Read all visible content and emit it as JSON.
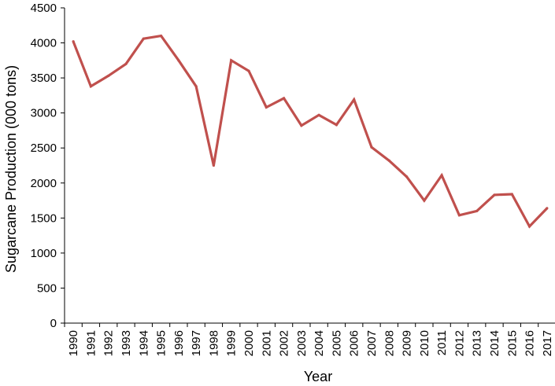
{
  "chart_data": {
    "type": "line",
    "title": "",
    "xlabel": "Year",
    "ylabel": "Sugarcane Production (000 tons)",
    "ylim": [
      0,
      4500
    ],
    "yticks": [
      0,
      500,
      1000,
      1500,
      2000,
      2500,
      3000,
      3500,
      4000,
      4500
    ],
    "x": [
      "1990",
      "1991",
      "1992",
      "1993",
      "1994",
      "1995",
      "1996",
      "1997",
      "1998",
      "1999",
      "2000",
      "2001",
      "2002",
      "2003",
      "2004",
      "2005",
      "2006",
      "2007",
      "2008",
      "2009",
      "2010",
      "2011",
      "2012",
      "2013",
      "2014",
      "2015",
      "2016",
      "2017"
    ],
    "series": [
      {
        "values": [
          4020,
          3380,
          3530,
          3700,
          4060,
          4100,
          3750,
          3380,
          2250,
          3750,
          3600,
          3080,
          3210,
          2820,
          2970,
          2830,
          3190,
          2510,
          2320,
          2090,
          1750,
          2110,
          1540,
          1600,
          1830,
          1840,
          1380,
          1640
        ]
      }
    ],
    "line_color": "#c0504d",
    "grid": false,
    "legend": "none"
  }
}
